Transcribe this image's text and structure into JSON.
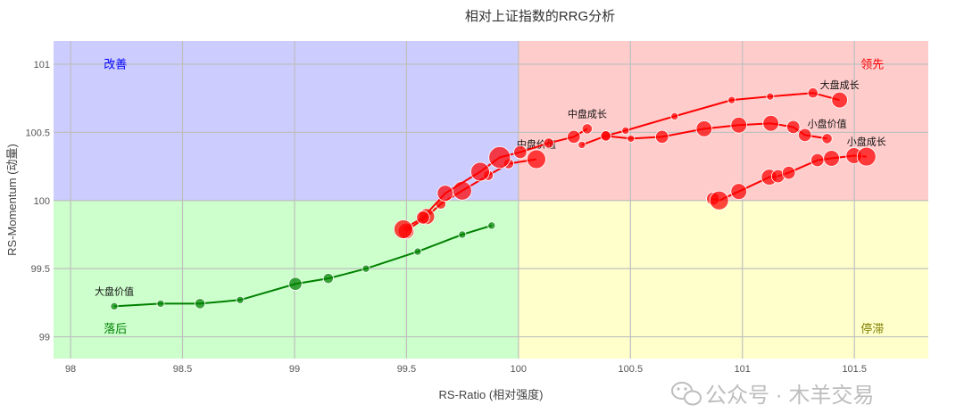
{
  "chart_data": {
    "type": "scatter",
    "title": "相对上证指数的RRG分析",
    "xlabel": "RS-Ratio (相对强度)",
    "ylabel": "RS-Momentum (动量)",
    "xlim": [
      97.924,
      101.83
    ],
    "ylim": [
      98.84,
      101.17
    ],
    "xticks": [
      98,
      98.5,
      99,
      99.5,
      100,
      100.5,
      101,
      101.5
    ],
    "xtick_labels": [
      "98",
      "98.5",
      "99",
      "99.5",
      "100",
      "100.5",
      "101",
      "101.5"
    ],
    "yticks": [
      99,
      99.5,
      100,
      100.5,
      101
    ],
    "ytick_labels": [
      "99",
      "99.5",
      "100",
      "100.5",
      "101"
    ],
    "grid": true,
    "center": {
      "x": 100,
      "y": 100
    },
    "quadrants": [
      {
        "name": "改善",
        "position": "top-left",
        "fill": "#ccccff",
        "text_color": "#0000ff"
      },
      {
        "name": "领先",
        "position": "top-right",
        "fill": "#ffcccc",
        "text_color": "#ff0000"
      },
      {
        "name": "落后",
        "position": "bottom-left",
        "fill": "#ccffcc",
        "text_color": "#008000"
      },
      {
        "name": "停滞",
        "position": "bottom-right",
        "fill": "#ffffcc",
        "text_color": "#808000"
      }
    ],
    "series": [
      {
        "name": "大盘价值",
        "color": "#008000",
        "label_at": "first",
        "x": [
          98.195,
          98.402,
          98.578,
          98.757,
          99.004,
          99.151,
          99.319,
          99.55,
          99.749,
          99.88
        ],
        "y": [
          99.224,
          99.243,
          99.243,
          99.27,
          99.388,
          99.428,
          99.5,
          99.625,
          99.75,
          99.816
        ],
        "size": [
          1,
          1,
          2,
          1,
          3,
          2,
          1,
          1,
          1,
          1
        ]
      },
      {
        "name": "中盘价值",
        "color": "#ff0000",
        "label_at": "last",
        "x": [
          99.498,
          99.59,
          99.653,
          99.749,
          99.865,
          99.956,
          100.08
        ],
        "y": [
          99.776,
          99.882,
          99.974,
          100.072,
          100.184,
          100.27,
          100.303
        ],
        "size": [
          4,
          4,
          2,
          5,
          2,
          2,
          5
        ]
      },
      {
        "name": "中盘成长",
        "color": "#ff0000",
        "label_at": "last",
        "x": [
          99.486,
          99.574,
          99.673,
          99.829,
          99.916,
          100.008,
          100.135,
          100.247,
          100.307
        ],
        "y": [
          99.789,
          99.875,
          100.053,
          100.211,
          100.316,
          100.355,
          100.421,
          100.467,
          100.526
        ],
        "size": [
          5,
          3,
          4,
          5,
          6,
          3,
          2,
          3,
          2
        ]
      },
      {
        "name": "大盘成长",
        "color": "#ff0000",
        "label_at": "last",
        "x": [
          100.39,
          100.478,
          100.697,
          100.952,
          101.124,
          101.315,
          101.434
        ],
        "y": [
          100.474,
          100.513,
          100.618,
          100.737,
          100.763,
          100.789,
          100.737
        ],
        "size": [
          2,
          1,
          1,
          1,
          1,
          2,
          4
        ]
      },
      {
        "name": "小盘价值",
        "color": "#ff0000",
        "label_at": "last",
        "x": [
          100.283,
          100.39,
          100.502,
          100.641,
          100.829,
          100.984,
          101.127,
          101.227,
          101.279,
          101.378
        ],
        "y": [
          100.408,
          100.474,
          100.454,
          100.467,
          100.526,
          100.553,
          100.566,
          100.539,
          100.48,
          100.454
        ],
        "size": [
          1,
          2,
          1,
          3,
          4,
          4,
          4,
          3,
          3,
          2
        ]
      },
      {
        "name": "小盘成长",
        "color": "#ff0000",
        "label_at": "last",
        "x": [
          100.869,
          100.896,
          100.984,
          101.12,
          101.159,
          101.207,
          101.335,
          101.398,
          101.498,
          101.554
        ],
        "y": [
          100.013,
          100.0,
          100.066,
          100.171,
          100.178,
          100.204,
          100.296,
          100.309,
          100.329,
          100.322
        ],
        "size": [
          3,
          5,
          4,
          4,
          3,
          3,
          3,
          4,
          4,
          5
        ]
      }
    ]
  },
  "watermark": {
    "text": "公众号 · 木羊交易",
    "icon": "wechat-icon"
  }
}
